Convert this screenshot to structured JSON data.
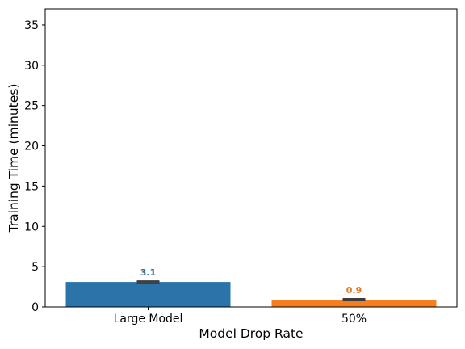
{
  "chart_data": {
    "type": "bar",
    "title": "",
    "xlabel": "Model Drop Rate",
    "ylabel": "Training Time (minutes)",
    "categories": [
      "Large Model",
      "50%"
    ],
    "values": [
      3.1,
      0.9
    ],
    "data_labels": [
      "3.1",
      "0.9"
    ],
    "error_bars": [
      [
        3.0,
        3.2
      ],
      [
        0.8,
        1.0
      ]
    ],
    "colors": [
      "#2b74aa",
      "#f57f20"
    ],
    "label_colors": [
      "#2f6aa0",
      "#e07b2a"
    ],
    "ylim": [
      0,
      37
    ],
    "yticks": [
      0,
      5,
      10,
      15,
      20,
      25,
      30,
      35
    ],
    "ytick_labels": [
      "0",
      "5",
      "10",
      "15",
      "20",
      "25",
      "30",
      "35"
    ],
    "grid": false,
    "legend": "none"
  }
}
